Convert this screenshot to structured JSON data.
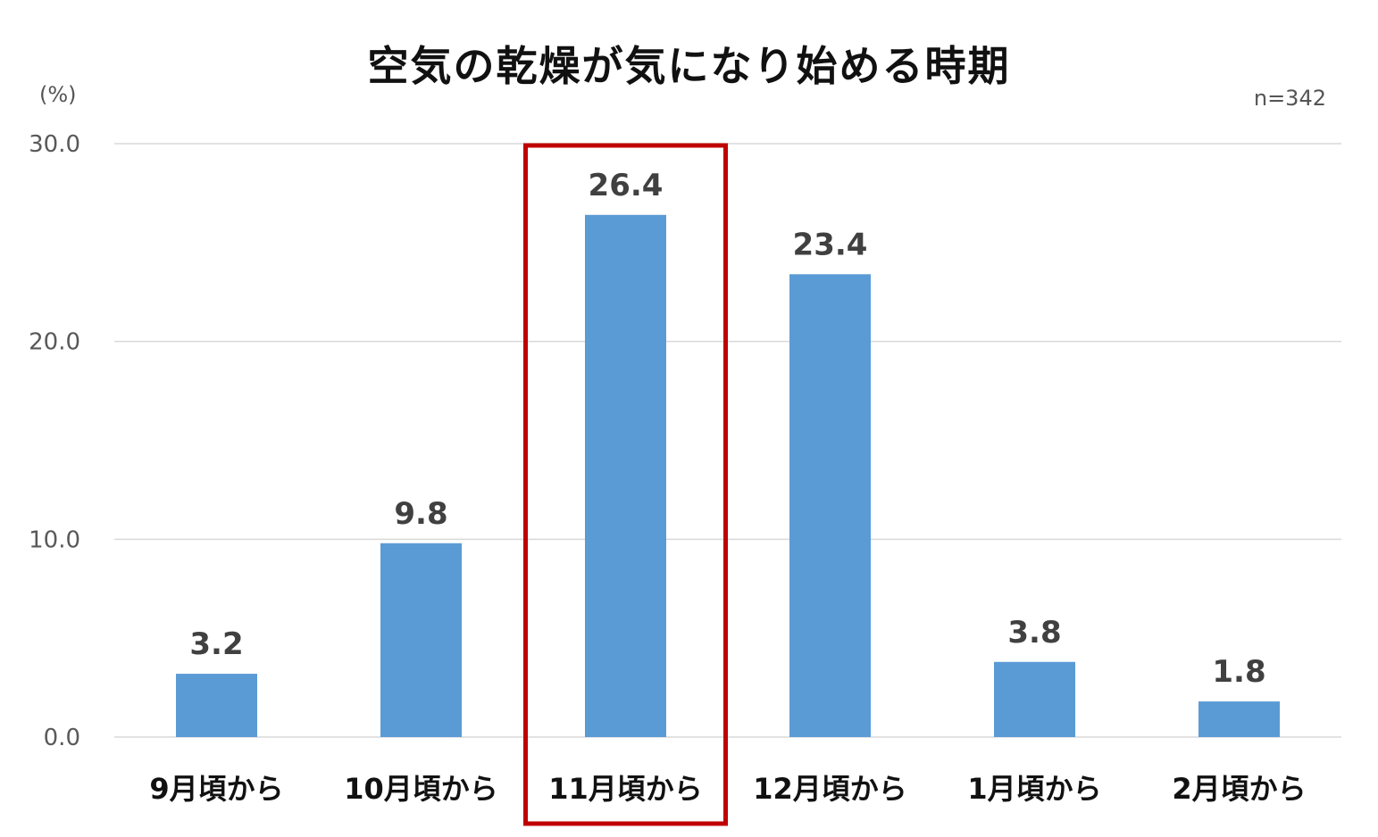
{
  "chart_data": {
    "type": "bar",
    "title": "空気の乾燥が気になり始める時期",
    "unit_label": "(%)",
    "sample_size_label": "n=342",
    "categories": [
      "9月頃から",
      "10月頃から",
      "11月頃から",
      "12月頃から",
      "1月頃から",
      "2月頃から"
    ],
    "values": [
      3.2,
      9.8,
      26.4,
      23.4,
      3.8,
      1.8
    ],
    "value_labels": [
      "3.2",
      "9.8",
      "26.4",
      "23.4",
      "3.8",
      "1.8"
    ],
    "ylim": [
      0,
      30
    ],
    "yticks": [
      0,
      10,
      20,
      30
    ],
    "ytick_labels": [
      "0.0",
      "10.0",
      "20.0",
      "30.0"
    ],
    "highlighted_category": "11月頃から",
    "grid": true,
    "colors": {
      "bar": "#5b9bd5",
      "highlight_box": "#c00000",
      "grid": "#d9d9d9",
      "axis_text": "#595959",
      "data_label": "#404040",
      "category_label": "#111111"
    }
  }
}
